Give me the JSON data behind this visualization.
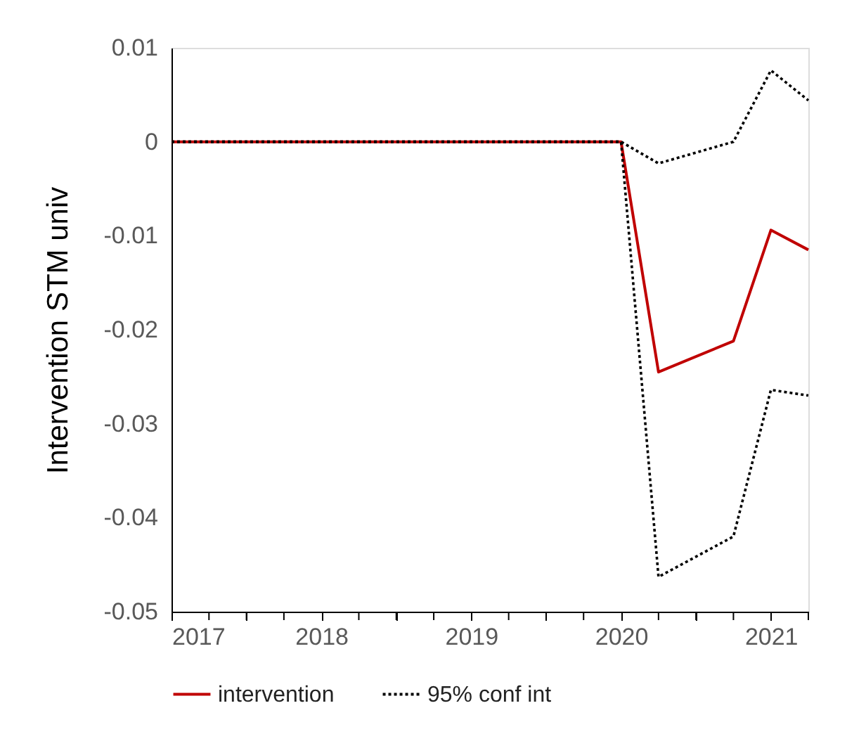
{
  "chart_data": {
    "type": "line",
    "ylabel": "Intervention STM univ",
    "x": [
      2017,
      2020,
      2020.25,
      2020.75,
      2021,
      2021.25
    ],
    "series": [
      {
        "name": "intervention",
        "color": "#c00000",
        "line_style": "solid",
        "values": [
          0,
          0,
          -0.0245,
          -0.0212,
          -0.0094,
          -0.0115
        ]
      },
      {
        "name": "95% conf int",
        "color": "#000000",
        "line_style": "dotted",
        "values": [
          0,
          0,
          -0.0023,
          0.0,
          0.0076,
          0.0044
        ]
      },
      {
        "color": "#000000",
        "line_style": "dotted",
        "values": [
          0,
          0,
          -0.0463,
          -0.042,
          -0.0264,
          -0.027
        ]
      }
    ],
    "xlim": [
      2017,
      2021.25
    ],
    "xticks": [
      2017,
      {
        "value": 2017.25,
        "label": null
      },
      {
        "value": 2017.5,
        "label": null
      },
      {
        "value": 2017.75,
        "label": null
      },
      2018,
      {
        "value": 2018.25,
        "label": null
      },
      {
        "value": 2018.5,
        "label": null
      },
      {
        "value": 2018.75,
        "label": null
      },
      2019,
      {
        "value": 2019.25,
        "label": null
      },
      {
        "value": 2019.5,
        "label": null
      },
      {
        "value": 2019.75,
        "label": null
      },
      2020,
      {
        "value": 2020.25,
        "label": null
      },
      {
        "value": 2020.5,
        "label": null
      },
      {
        "value": 2020.75,
        "label": null
      },
      2021,
      {
        "value": 2021.25,
        "label": null
      }
    ],
    "ylim": [
      -0.05,
      0.01
    ],
    "yticks": [
      0.01,
      0,
      -0.01,
      -0.02,
      -0.03,
      -0.04,
      -0.05
    ],
    "grid": false,
    "legend": "bottom",
    "marker": "none"
  }
}
